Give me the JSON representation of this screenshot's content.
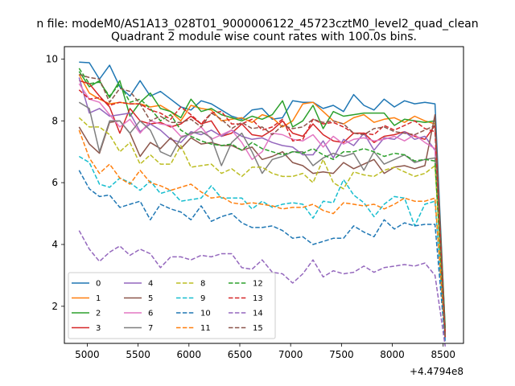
{
  "chart_data": {
    "type": "line",
    "suptitle": "n file: modeM0/AS1A13_028T01_9000006122_45723cztM0_level2_quad_clean",
    "title": "Quadrant 2 module wise count rates with 100.0s bins.",
    "xlabel": "",
    "ylabel": "",
    "x_offset_label": "+4.4794e8",
    "xlim": [
      4775,
      8700
    ],
    "ylim": [
      0.8,
      10.4
    ],
    "xticks": [
      5000,
      5500,
      6000,
      6500,
      7000,
      7500,
      8000,
      8500
    ],
    "yticks": [
      2,
      4,
      6,
      8,
      10
    ],
    "grid": false,
    "legend_position": "lower-left",
    "x": [
      4920,
      5020,
      5120,
      5220,
      5320,
      5420,
      5520,
      5620,
      5720,
      5820,
      5920,
      6020,
      6120,
      6220,
      6320,
      6420,
      6520,
      6620,
      6720,
      6820,
      6920,
      7020,
      7120,
      7220,
      7320,
      7420,
      7520,
      7620,
      7720,
      7820,
      7920,
      8020,
      8120,
      8220,
      8320,
      8420,
      8520
    ],
    "series": [
      {
        "name": "0",
        "color": "#1f77b4",
        "dash": "solid",
        "values": [
          9.9,
          9.88,
          9.35,
          9.8,
          9.1,
          8.8,
          9.3,
          8.8,
          8.95,
          8.7,
          8.45,
          8.35,
          8.65,
          8.55,
          8.35,
          8.15,
          8.05,
          8.35,
          8.4,
          8.05,
          8.1,
          8.65,
          8.6,
          8.6,
          8.4,
          8.5,
          8.3,
          8.85,
          8.5,
          8.35,
          8.7,
          8.45,
          8.65,
          8.55,
          8.6,
          8.55,
          1.2
        ]
      },
      {
        "name": "1",
        "color": "#ff7f0e",
        "dash": "solid",
        "values": [
          9.5,
          8.9,
          8.7,
          8.55,
          8.6,
          8.55,
          8.55,
          8.45,
          8.5,
          8.3,
          8.0,
          8.5,
          8.4,
          8.35,
          8.0,
          8.05,
          8.1,
          7.95,
          8.2,
          8.1,
          7.8,
          8.0,
          8.55,
          8.6,
          8.3,
          8.0,
          7.9,
          8.1,
          8.2,
          7.95,
          8.05,
          8.1,
          7.95,
          8.15,
          8.0,
          7.9,
          1.1
        ]
      },
      {
        "name": "2",
        "color": "#2ca02c",
        "dash": "solid",
        "values": [
          9.6,
          9.1,
          9.3,
          8.75,
          9.3,
          8.15,
          8.6,
          8.9,
          8.4,
          8.3,
          8.1,
          8.7,
          8.3,
          8.4,
          8.2,
          8.1,
          8.0,
          8.15,
          8.05,
          8.2,
          8.65,
          7.8,
          8.0,
          8.5,
          7.75,
          8.3,
          8.15,
          8.2,
          8.25,
          8.25,
          8.25,
          7.85,
          8.05,
          8.0,
          7.95,
          8.0,
          1.3
        ]
      },
      {
        "name": "3",
        "color": "#d62728",
        "dash": "solid",
        "values": [
          9.3,
          9.2,
          8.8,
          8.45,
          7.6,
          8.4,
          8.0,
          7.9,
          7.95,
          7.8,
          7.9,
          8.15,
          7.9,
          8.0,
          7.5,
          7.6,
          7.9,
          7.55,
          7.5,
          7.7,
          8.0,
          7.6,
          7.5,
          7.9,
          7.55,
          7.35,
          7.3,
          7.6,
          7.6,
          7.3,
          7.5,
          7.55,
          7.65,
          7.5,
          7.4,
          7.85,
          1.0
        ]
      },
      {
        "name": "4",
        "color": "#9467bd",
        "dash": "solid",
        "values": [
          9.4,
          8.25,
          8.4,
          8.15,
          8.2,
          8.25,
          7.65,
          7.9,
          7.7,
          7.4,
          7.3,
          7.65,
          7.55,
          7.7,
          7.5,
          7.7,
          7.5,
          7.4,
          7.45,
          7.3,
          7.2,
          7.15,
          6.9,
          6.9,
          7.35,
          6.8,
          7.4,
          7.2,
          7.6,
          7.05,
          7.45,
          7.4,
          7.65,
          7.4,
          7.5,
          7.05,
          1.0
        ]
      },
      {
        "name": "5",
        "color": "#8c564b",
        "dash": "solid",
        "values": [
          7.8,
          7.25,
          6.95,
          7.95,
          8.0,
          7.6,
          6.85,
          7.3,
          7.1,
          7.45,
          7.1,
          7.45,
          7.25,
          7.3,
          7.2,
          7.2,
          7.05,
          7.15,
          6.75,
          6.85,
          7.0,
          6.65,
          6.55,
          6.3,
          6.35,
          6.3,
          6.65,
          6.45,
          6.6,
          6.75,
          6.3,
          6.5,
          6.55,
          6.45,
          6.55,
          8.2,
          1.0
        ]
      },
      {
        "name": "6",
        "color": "#e377c2",
        "dash": "solid",
        "values": [
          9.2,
          8.7,
          8.6,
          8.2,
          7.8,
          8.05,
          7.6,
          8.0,
          7.9,
          7.85,
          7.5,
          7.55,
          7.8,
          7.4,
          7.55,
          7.7,
          7.3,
          6.75,
          7.0,
          7.6,
          7.55,
          7.4,
          7.35,
          7.55,
          7.15,
          7.5,
          7.25,
          7.4,
          7.45,
          7.35,
          7.4,
          7.5,
          7.35,
          7.55,
          7.3,
          7.1,
          1.0
        ]
      },
      {
        "name": "7",
        "color": "#7f7f7f",
        "dash": "solid",
        "values": [
          8.6,
          8.4,
          7.0,
          8.0,
          8.0,
          7.6,
          8.0,
          7.7,
          7.0,
          6.85,
          7.45,
          7.6,
          7.65,
          7.45,
          6.55,
          7.3,
          7.6,
          7.0,
          6.3,
          6.75,
          6.85,
          7.0,
          7.0,
          6.55,
          6.8,
          6.95,
          6.85,
          6.95,
          6.4,
          7.0,
          6.6,
          6.75,
          6.9,
          6.65,
          6.75,
          6.8,
          1.0
        ]
      },
      {
        "name": "8",
        "color": "#bcbd22",
        "dash": "dashed",
        "values": [
          8.1,
          7.8,
          7.8,
          7.55,
          7.0,
          7.3,
          6.6,
          6.9,
          6.6,
          6.6,
          7.2,
          6.5,
          6.55,
          6.6,
          6.3,
          6.45,
          6.2,
          6.5,
          6.5,
          6.3,
          6.2,
          6.2,
          6.3,
          6.0,
          6.75,
          6.0,
          5.8,
          6.35,
          6.25,
          6.2,
          6.4,
          6.5,
          6.35,
          6.2,
          6.3,
          6.55,
          1.0
        ]
      },
      {
        "name": "9",
        "color": "#17becf",
        "dash": "dashed",
        "values": [
          6.85,
          6.65,
          5.95,
          5.85,
          6.15,
          6.0,
          5.75,
          6.05,
          5.65,
          5.75,
          5.4,
          5.45,
          5.5,
          5.9,
          5.5,
          5.5,
          5.5,
          5.15,
          5.4,
          5.2,
          5.3,
          5.35,
          5.3,
          4.85,
          5.4,
          5.35,
          6.1,
          5.6,
          5.35,
          4.9,
          5.3,
          5.55,
          5.5,
          4.6,
          5.3,
          5.4,
          0.9
        ]
      },
      {
        "name": "10",
        "color": "#1f77b4",
        "dash": "dashed",
        "values": [
          6.4,
          5.8,
          5.55,
          5.6,
          5.2,
          5.3,
          5.4,
          4.8,
          5.3,
          5.15,
          5.05,
          4.8,
          5.25,
          4.75,
          4.9,
          5.0,
          4.7,
          4.55,
          4.55,
          4.6,
          4.45,
          4.2,
          4.25,
          4.0,
          4.1,
          4.2,
          4.2,
          4.6,
          4.4,
          4.25,
          4.8,
          4.5,
          4.7,
          4.6,
          4.65,
          4.65,
          0.8
        ]
      },
      {
        "name": "11",
        "color": "#ff7f0e",
        "dash": "dashed",
        "values": [
          7.7,
          6.8,
          6.3,
          6.6,
          6.15,
          5.95,
          6.4,
          6.0,
          5.9,
          5.75,
          5.85,
          5.95,
          5.7,
          5.5,
          5.55,
          5.35,
          5.3,
          5.35,
          5.3,
          5.25,
          5.15,
          5.2,
          5.2,
          5.3,
          5.1,
          5.0,
          5.35,
          5.3,
          5.25,
          5.3,
          5.15,
          5.3,
          5.5,
          5.4,
          5.4,
          5.5,
          1.0
        ]
      },
      {
        "name": "12",
        "color": "#2ca02c",
        "dash": "dashed",
        "values": [
          9.7,
          9.2,
          9.25,
          8.8,
          9.2,
          8.6,
          8.7,
          8.4,
          8.0,
          8.2,
          7.7,
          7.5,
          7.35,
          7.25,
          7.2,
          7.25,
          7.05,
          7.3,
          7.1,
          7.0,
          6.9,
          7.0,
          6.95,
          7.1,
          6.9,
          6.75,
          7.0,
          7.0,
          7.1,
          7.0,
          6.85,
          6.95,
          6.9,
          6.7,
          6.75,
          6.7,
          1.0
        ]
      },
      {
        "name": "13",
        "color": "#d62728",
        "dash": "dashed",
        "values": [
          9.0,
          8.7,
          8.75,
          8.5,
          8.6,
          8.55,
          8.55,
          8.35,
          8.25,
          8.05,
          8.45,
          8.2,
          7.9,
          8.25,
          8.3,
          7.9,
          7.9,
          8.05,
          7.7,
          7.8,
          8.05,
          7.35,
          7.4,
          8.05,
          7.9,
          7.95,
          7.8,
          7.6,
          7.6,
          7.55,
          7.85,
          7.7,
          7.85,
          8.0,
          7.75,
          7.65,
          1.0
        ]
      },
      {
        "name": "14",
        "color": "#9467bd",
        "dash": "dashed",
        "values": [
          4.45,
          3.85,
          3.45,
          3.75,
          3.95,
          3.65,
          3.85,
          3.7,
          3.25,
          3.6,
          3.6,
          3.5,
          3.65,
          3.6,
          3.7,
          3.7,
          3.25,
          3.2,
          3.5,
          3.1,
          3.05,
          2.75,
          3.05,
          3.5,
          2.95,
          3.15,
          3.05,
          3.1,
          3.3,
          3.1,
          3.25,
          3.3,
          3.35,
          3.3,
          3.4,
          3.0,
          0.7
        ]
      },
      {
        "name": "15",
        "color": "#8c564b",
        "dash": "dashed",
        "values": [
          9.5,
          9.4,
          9.35,
          8.6,
          9.05,
          8.95,
          8.55,
          8.0,
          8.15,
          7.95,
          7.95,
          8.05,
          7.8,
          8.25,
          8.05,
          7.75,
          7.95,
          7.75,
          7.8,
          7.55,
          7.85,
          7.75,
          7.8,
          8.05,
          7.95,
          8.0,
          7.9,
          7.6,
          7.55,
          7.75,
          7.8,
          7.65,
          7.6,
          7.55,
          7.7,
          7.85,
          1.0
        ]
      }
    ]
  }
}
